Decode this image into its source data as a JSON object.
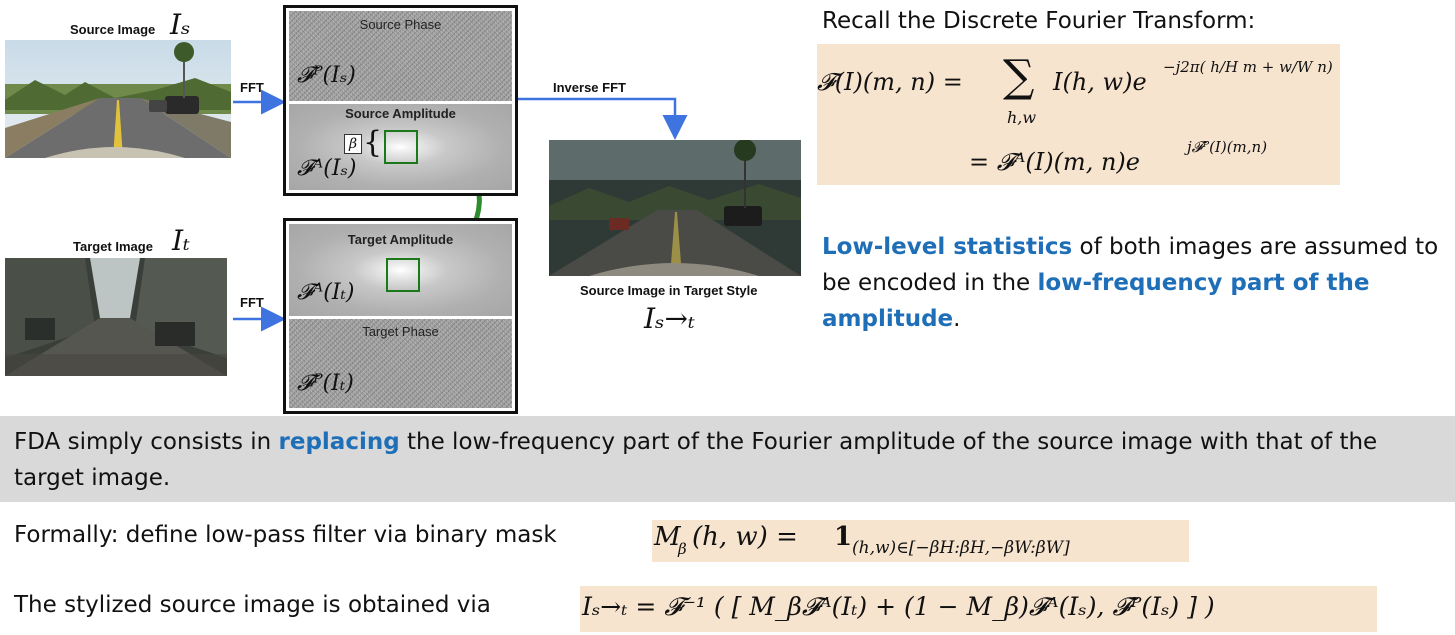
{
  "left_diagram": {
    "source_image_label": "Source Image",
    "source_image_symbol": "Iₛ",
    "target_image_label": "Target Image",
    "target_image_symbol": "Iₜ",
    "fft_label_top": "FFT",
    "fft_label_bottom": "FFT",
    "inverse_fft_label": "Inverse FFT",
    "source_box": {
      "phase_title": "Source Phase",
      "phase_math": "𝓕ᴾ(Iₛ)",
      "amplitude_title": "Source Amplitude",
      "amplitude_math": "𝓕ᴬ(Iₛ)",
      "beta_label": "β"
    },
    "target_box": {
      "amplitude_title": "Target Amplitude",
      "amplitude_math": "𝓕ᴬ(Iₜ)",
      "phase_title": "Target Phase",
      "phase_math": "𝓕ᴾ(Iₜ)"
    },
    "output_label": "Source Image in Target Style",
    "output_symbol": "Iₛ→ₜ"
  },
  "right_panel": {
    "dft_heading": "Recall the Discrete Fourier Transform:",
    "dft_line1_lhs": "𝓕(I)(m, n) =",
    "dft_sum": "∑",
    "dft_sum_sub": "h,w",
    "dft_line1_rhs": "I(h, w)e",
    "dft_line1_exp": "−j2π( h/H m + w/W n)",
    "dft_line2": "= 𝓕ᴬ(I)(m, n)e",
    "dft_line2_exp": "j𝓕ᴾ(I)(m,n)",
    "stat_text_1_blue": "Low-level statistics",
    "stat_text_2": " of both images are assumed to be encoded in the ",
    "stat_text_3_blue": "low-frequency part of the amplitude",
    "stat_text_4": "."
  },
  "band": {
    "text_1": "FDA simply consists in ",
    "text_2_blue": "replacing",
    "text_3": " the low-frequency part of the Fourier amplitude of the source image with that of the target image."
  },
  "formal": {
    "label": "Formally: define low-pass filter via binary mask",
    "formula": "M",
    "formula_sub": "β",
    "formula_rest": "(h, w) = ",
    "formula_one": "1",
    "formula_one_sub": "(h,w)∈[−βH:βH,−βW:βW]"
  },
  "stylized": {
    "label": "The stylized source image is obtained via",
    "formula": "Iₛ→ₜ = 𝓕⁻¹ ( [ M_β𝓕ᴬ(Iₜ) + (1 − M_β)𝓕ᴬ(Iₛ), 𝓕ᴾ(Iₛ) ] )"
  },
  "colors": {
    "accent_blue": "#1f6fb8",
    "arrow_blue": "#3f74e0",
    "swap_arrow_green": "#2e8b2e",
    "formula_background": "#f7e4cf",
    "band_background": "#d9d9d9"
  }
}
